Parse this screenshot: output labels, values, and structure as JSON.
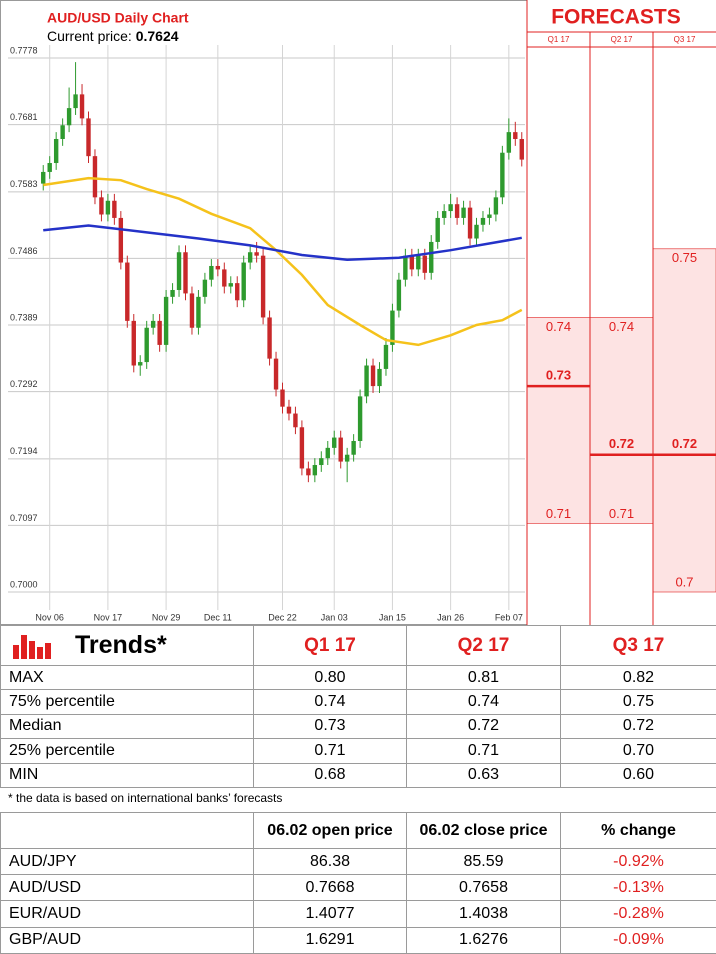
{
  "chart_data": [
    {
      "type": "candlestick",
      "title": "AUD/USD Daily Chart",
      "current_price_label": "Current price:",
      "current_price": 0.7624,
      "categories": [
        null,
        "Nov 06",
        null,
        null,
        null,
        null,
        null,
        null,
        null,
        null,
        "Nov 17",
        null,
        null,
        null,
        null,
        null,
        null,
        null,
        null,
        "Nov 29",
        null,
        null,
        null,
        null,
        null,
        null,
        null,
        "Dec 11",
        null,
        null,
        null,
        null,
        null,
        null,
        null,
        null,
        null,
        "Dec 22",
        null,
        null,
        null,
        null,
        null,
        null,
        null,
        "Jan 03",
        null,
        null,
        null,
        null,
        null,
        null,
        null,
        null,
        "Jan 15",
        null,
        null,
        null,
        null,
        null,
        null,
        null,
        null,
        "Jan 26",
        null,
        null,
        null,
        null,
        null,
        null,
        null,
        null,
        "Feb 07",
        null,
        null
      ],
      "open": [
        0.7595,
        0.7612,
        0.7625,
        0.766,
        0.768,
        0.7705,
        0.7725,
        0.769,
        0.7635,
        0.7575,
        0.755,
        0.757,
        0.7545,
        0.748,
        0.7395,
        0.733,
        0.7335,
        0.7385,
        0.7395,
        0.736,
        0.743,
        0.744,
        0.7495,
        0.7435,
        0.7385,
        0.743,
        0.7455,
        0.7475,
        0.747,
        0.7445,
        0.745,
        0.7425,
        0.748,
        0.7495,
        0.749,
        0.74,
        0.734,
        0.7295,
        0.727,
        0.726,
        0.724,
        0.718,
        0.717,
        0.7185,
        0.7195,
        0.721,
        0.7225,
        0.719,
        0.72,
        0.722,
        0.7285,
        0.733,
        0.73,
        0.7325,
        0.736,
        0.741,
        0.7455,
        0.749,
        0.747,
        0.749,
        0.7465,
        0.751,
        0.7545,
        0.7555,
        0.7565,
        0.7545,
        0.756,
        0.7515,
        0.7535,
        0.7545,
        0.755,
        0.7575,
        0.764,
        0.767,
        0.766
      ],
      "high": [
        0.7622,
        0.7635,
        0.767,
        0.769,
        0.7735,
        0.7772,
        0.774,
        0.77,
        0.7645,
        0.7585,
        0.758,
        0.758,
        0.7555,
        0.749,
        0.7405,
        0.7345,
        0.7395,
        0.7405,
        0.7405,
        0.744,
        0.745,
        0.7505,
        0.7505,
        0.7445,
        0.744,
        0.7465,
        0.7485,
        0.7485,
        0.748,
        0.746,
        0.746,
        0.749,
        0.7505,
        0.751,
        0.75,
        0.741,
        0.735,
        0.7305,
        0.728,
        0.727,
        0.725,
        0.719,
        0.7195,
        0.7205,
        0.722,
        0.7235,
        0.7235,
        0.721,
        0.723,
        0.7295,
        0.734,
        0.734,
        0.7335,
        0.737,
        0.742,
        0.7465,
        0.75,
        0.75,
        0.75,
        0.75,
        0.752,
        0.7555,
        0.7565,
        0.758,
        0.7575,
        0.757,
        0.757,
        0.7545,
        0.7555,
        0.756,
        0.7585,
        0.765,
        0.769,
        0.7685,
        0.767
      ],
      "low": [
        0.7585,
        0.7602,
        0.7615,
        0.765,
        0.767,
        0.7695,
        0.768,
        0.7625,
        0.7565,
        0.754,
        0.754,
        0.7535,
        0.747,
        0.7385,
        0.732,
        0.7315,
        0.7325,
        0.7375,
        0.735,
        0.735,
        0.742,
        0.743,
        0.7425,
        0.7375,
        0.7375,
        0.742,
        0.7445,
        0.746,
        0.7435,
        0.7435,
        0.7415,
        0.7415,
        0.747,
        0.748,
        0.739,
        0.733,
        0.7285,
        0.726,
        0.725,
        0.723,
        0.717,
        0.716,
        0.716,
        0.7175,
        0.7185,
        0.72,
        0.718,
        0.716,
        0.719,
        0.721,
        0.7275,
        0.729,
        0.729,
        0.7315,
        0.735,
        0.74,
        0.7445,
        0.746,
        0.746,
        0.7455,
        0.7455,
        0.75,
        0.7535,
        0.7545,
        0.7535,
        0.7535,
        0.7505,
        0.7505,
        0.7525,
        0.7535,
        0.754,
        0.7565,
        0.763,
        0.765,
        0.762
      ],
      "close": [
        0.7612,
        0.7625,
        0.766,
        0.768,
        0.7705,
        0.7725,
        0.769,
        0.7635,
        0.7575,
        0.755,
        0.757,
        0.7545,
        0.748,
        0.7395,
        0.733,
        0.7335,
        0.7385,
        0.7395,
        0.736,
        0.743,
        0.744,
        0.7495,
        0.7435,
        0.7385,
        0.743,
        0.7455,
        0.7475,
        0.747,
        0.7445,
        0.745,
        0.7425,
        0.748,
        0.7495,
        0.749,
        0.74,
        0.734,
        0.7295,
        0.727,
        0.726,
        0.724,
        0.718,
        0.717,
        0.7185,
        0.7195,
        0.721,
        0.7225,
        0.719,
        0.72,
        0.722,
        0.7285,
        0.733,
        0.73,
        0.7325,
        0.736,
        0.741,
        0.7455,
        0.749,
        0.747,
        0.749,
        0.7465,
        0.751,
        0.7545,
        0.7555,
        0.7565,
        0.7545,
        0.756,
        0.7515,
        0.7535,
        0.7545,
        0.755,
        0.7575,
        0.764,
        0.767,
        0.766,
        0.763
      ],
      "up_color": "#2e9a2e",
      "down_color": "#c8282a",
      "ylim": [
        0.7,
        0.7778
      ],
      "yticks": [
        0.7778,
        0.7681,
        0.7583,
        0.7486,
        0.7389,
        0.7292,
        0.7194,
        0.7097,
        {
          "value": 0.7,
          "label": "0.7000"
        }
      ],
      "grid": true,
      "lines": [
        {
          "color": "#f5c21b",
          "x": [
            0,
            7,
            12,
            16,
            21,
            26,
            32,
            36,
            40,
            44,
            49,
            53,
            58,
            63,
            67,
            71,
            74
          ],
          "values": [
            0.7593,
            0.7603,
            0.76,
            0.7587,
            0.7573,
            0.7551,
            0.753,
            0.7498,
            0.7462,
            0.7418,
            0.7389,
            0.7367,
            0.736,
            0.7374,
            0.7389,
            0.7396,
            0.7411
          ]
        },
        {
          "color": "#2432c8",
          "x": [
            0,
            7,
            16,
            24,
            32,
            40,
            47,
            55,
            63,
            74
          ],
          "values": [
            0.7527,
            0.7534,
            0.7524,
            0.7515,
            0.7505,
            0.7491,
            0.7484,
            0.7487,
            0.7498,
            0.7516
          ]
        }
      ]
    },
    {
      "type": "forecast",
      "title": "FORECASTS",
      "categories": [
        "Q1 17",
        "Q2 17",
        "Q3 17"
      ],
      "q75": [
        0.74,
        0.74,
        0.75
      ],
      "median": [
        0.73,
        0.72,
        0.72
      ],
      "q25": [
        0.71,
        0.71,
        0.7
      ],
      "color": "#e02020",
      "ylim": [
        0.7,
        0.7778
      ]
    }
  ],
  "trends": {
    "title": "Trends*",
    "columns": [
      "Q1 17",
      "Q2 17",
      "Q3 17"
    ],
    "rows": [
      [
        "MAX",
        "0.80",
        "0.81",
        "0.82"
      ],
      [
        "75% percentile",
        "0.74",
        "0.74",
        "0.75"
      ],
      [
        "Median",
        "0.73",
        "0.72",
        "0.72"
      ],
      [
        "25% percentile",
        "0.71",
        "0.71",
        "0.70"
      ],
      [
        "MIN",
        "0.68",
        "0.63",
        "0.60"
      ]
    ]
  },
  "note": "* the data is based on international banks’ forecasts",
  "prices": {
    "columns": [
      "06.02 open price",
      "06.02 close price",
      "% change"
    ],
    "rows": [
      [
        "AUD/JPY",
        "86.38",
        "85.59",
        "-0.92%"
      ],
      [
        "AUD/USD",
        "0.7668",
        "0.7658",
        "-0.13%"
      ],
      [
        "EUR/AUD",
        "1.4077",
        "1.4038",
        "-0.28%"
      ],
      [
        "GBP/AUD",
        "1.6291",
        "1.6276",
        "-0.09%"
      ]
    ]
  }
}
